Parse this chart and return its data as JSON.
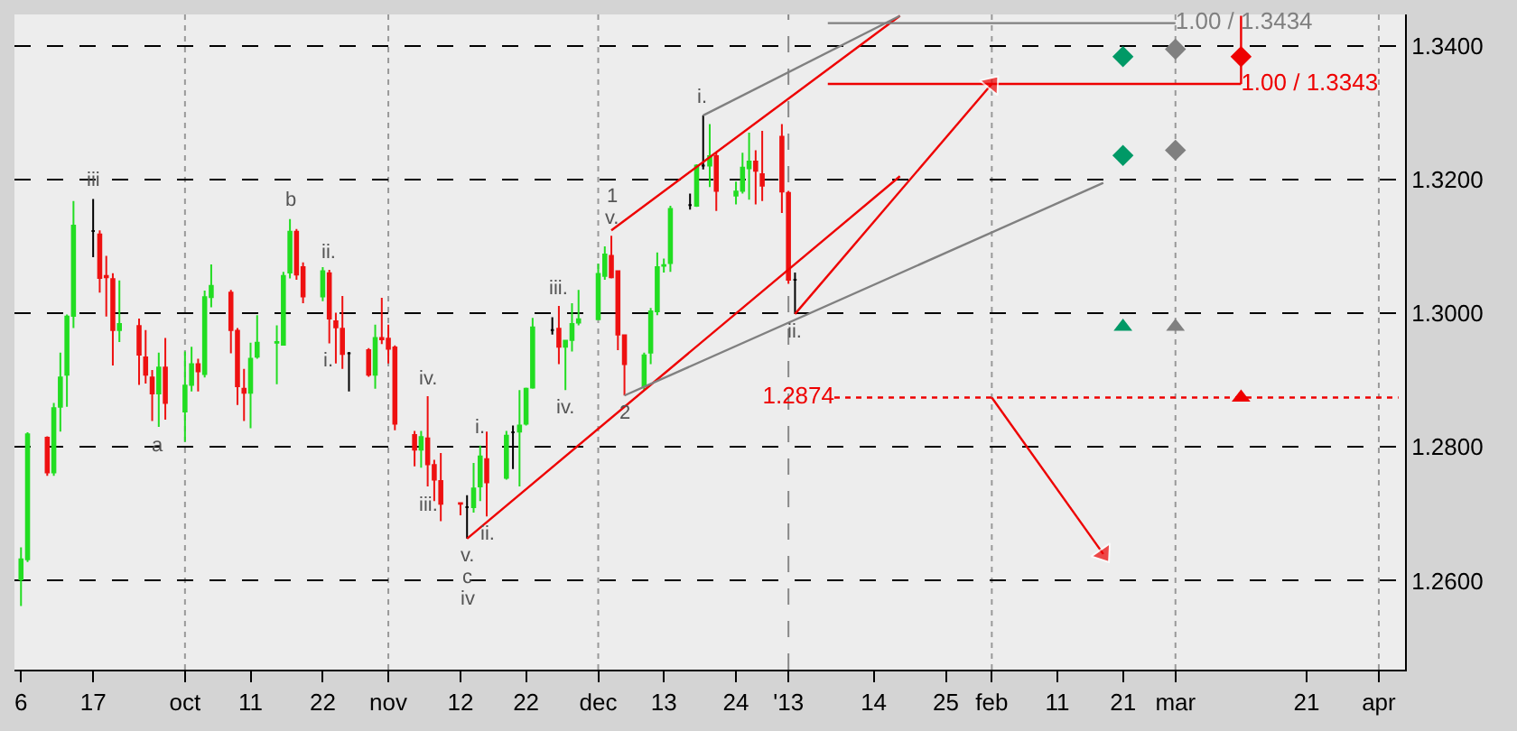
{
  "chart_data": {
    "type": "candlestick",
    "x": [
      "2012-09-06",
      "2012-09-07",
      "2012-09-10",
      "2012-09-11",
      "2012-09-12",
      "2012-09-13",
      "2012-09-14",
      "2012-09-17",
      "2012-09-18",
      "2012-09-19",
      "2012-09-20",
      "2012-09-21",
      "2012-09-24",
      "2012-09-25",
      "2012-09-26",
      "2012-09-27",
      "2012-09-28",
      "2012-10-01",
      "2012-10-02",
      "2012-10-03",
      "2012-10-04",
      "2012-10-05",
      "2012-10-08",
      "2012-10-09",
      "2012-10-10",
      "2012-10-11",
      "2012-10-12",
      "2012-10-15",
      "2012-10-16",
      "2012-10-17",
      "2012-10-18",
      "2012-10-19",
      "2012-10-22",
      "2012-10-23",
      "2012-10-24",
      "2012-10-25",
      "2012-10-26",
      "2012-10-29",
      "2012-10-30",
      "2012-10-31",
      "2012-11-01",
      "2012-11-02",
      "2012-11-05",
      "2012-11-06",
      "2012-11-07",
      "2012-11-08",
      "2012-11-09",
      "2012-11-12",
      "2012-11-13",
      "2012-11-14",
      "2012-11-15",
      "2012-11-16",
      "2012-11-19",
      "2012-11-20",
      "2012-11-21",
      "2012-11-22",
      "2012-11-23",
      "2012-11-26",
      "2012-11-27",
      "2012-11-28",
      "2012-11-29",
      "2012-11-30",
      "2012-12-03",
      "2012-12-04",
      "2012-12-05",
      "2012-12-06",
      "2012-12-07",
      "2012-12-10",
      "2012-12-11",
      "2012-12-12",
      "2012-12-13",
      "2012-12-14",
      "2012-12-17",
      "2012-12-18",
      "2012-12-19",
      "2012-12-20",
      "2012-12-21",
      "2012-12-24",
      "2012-12-25",
      "2012-12-26",
      "2012-12-27",
      "2012-12-28",
      "2012-12-31",
      "2013-01-01",
      "2013-01-02"
    ],
    "ohlc": [
      [
        1.2602,
        1.265,
        1.2562,
        1.2632
      ],
      [
        1.2632,
        1.2822,
        1.2628,
        1.2819
      ],
      [
        1.2814,
        1.2816,
        1.2757,
        1.2762
      ],
      [
        1.2762,
        1.2866,
        1.2757,
        1.2858
      ],
      [
        1.286,
        1.2941,
        1.2823,
        1.2904
      ],
      [
        1.2908,
        1.2998,
        1.286,
        1.2995
      ],
      [
        1.2996,
        1.3168,
        1.2978,
        1.3131
      ],
      [
        1.3123,
        1.3171,
        1.3084,
        1.3123
      ],
      [
        1.3118,
        1.3124,
        1.3031,
        1.3053
      ],
      [
        1.3056,
        1.3086,
        1.2995,
        1.3054
      ],
      [
        1.3051,
        1.306,
        1.2922,
        1.2975
      ],
      [
        1.2975,
        1.3049,
        1.2957,
        1.2984
      ],
      [
        1.2981,
        1.2992,
        1.2893,
        1.2938
      ],
      [
        1.2934,
        1.2975,
        1.2895,
        1.2908
      ],
      [
        1.2904,
        1.2915,
        1.2839,
        1.288
      ],
      [
        1.288,
        1.2941,
        1.283,
        1.2919
      ],
      [
        1.2919,
        1.2963,
        1.2841,
        1.2866
      ],
      [
        1.2853,
        1.2943,
        1.2808,
        1.2892
      ],
      [
        1.2893,
        1.295,
        1.2883,
        1.2924
      ],
      [
        1.2924,
        1.2932,
        1.2883,
        1.2913
      ],
      [
        1.2909,
        1.3034,
        1.2904,
        1.3024
      ],
      [
        1.3024,
        1.3073,
        1.3009,
        1.3041
      ],
      [
        1.3031,
        1.3035,
        1.294,
        1.2975
      ],
      [
        1.2974,
        1.2978,
        1.2863,
        1.2891
      ],
      [
        1.2887,
        1.2917,
        1.2839,
        1.2881
      ],
      [
        1.2881,
        1.2956,
        1.2828,
        1.2932
      ],
      [
        1.2935,
        1.2997,
        1.2932,
        1.2956
      ],
      [
        1.2956,
        1.2982,
        1.2894,
        1.2957
      ],
      [
        1.2953,
        1.3062,
        1.2953,
        1.3056
      ],
      [
        1.3061,
        1.3141,
        1.3052,
        1.3122
      ],
      [
        1.3122,
        1.3126,
        1.305,
        1.3058
      ],
      [
        1.3069,
        1.3076,
        1.3015,
        1.3025
      ],
      [
        1.3025,
        1.3069,
        1.3018,
        1.3063
      ],
      [
        1.306,
        1.3065,
        1.2955,
        1.2992
      ],
      [
        1.2988,
        1.3001,
        1.2925,
        1.2979
      ],
      [
        1.2977,
        1.3026,
        1.2917,
        1.2939
      ],
      [
        1.294,
        1.2942,
        1.2883,
        1.294
      ],
      [
        1.2945,
        1.2948,
        1.2905,
        1.2908
      ],
      [
        1.2908,
        1.2983,
        1.2887,
        1.2963
      ],
      [
        1.2963,
        1.3023,
        1.2954,
        1.2961
      ],
      [
        1.2962,
        1.2983,
        1.2925,
        1.2947
      ],
      [
        1.2949,
        1.2952,
        1.2825,
        1.2835
      ],
      [
        1.2818,
        1.2824,
        1.2771,
        1.2796
      ],
      [
        1.2796,
        1.2824,
        1.2769,
        1.2815
      ],
      [
        1.2813,
        1.2876,
        1.2741,
        1.2774
      ],
      [
        1.2773,
        1.2781,
        1.2719,
        1.2751
      ],
      [
        1.2749,
        1.2791,
        1.2689,
        1.2715
      ],
      [
        1.2716,
        1.2717,
        1.2698,
        1.2715
      ],
      [
        1.271,
        1.2728,
        1.2663,
        1.271
      ],
      [
        1.271,
        1.2776,
        1.2702,
        1.2738
      ],
      [
        1.2741,
        1.2802,
        1.2719,
        1.2786
      ],
      [
        1.2782,
        1.2823,
        1.2696,
        1.2747
      ],
      [
        1.2754,
        1.2824,
        1.2751,
        1.2817
      ],
      [
        1.2822,
        1.2832,
        1.2767,
        1.2822
      ],
      [
        1.2823,
        1.2885,
        1.2741,
        1.2832
      ],
      [
        1.2835,
        1.2889,
        1.2832,
        1.2887
      ],
      [
        1.2889,
        1.2993,
        1.2887,
        1.2979
      ],
      [
        1.2975,
        1.2994,
        1.2968,
        1.2975
      ],
      [
        1.2977,
        1.3011,
        1.2924,
        1.295
      ],
      [
        1.295,
        1.2959,
        1.2885,
        1.2959
      ],
      [
        1.296,
        1.3015,
        1.2943,
        1.2984
      ],
      [
        1.2986,
        1.3035,
        1.2982,
        1.2991
      ],
      [
        1.2991,
        1.3074,
        1.2991,
        1.3059
      ],
      [
        1.3056,
        1.31,
        1.305,
        1.3088
      ],
      [
        1.3086,
        1.3116,
        1.3052,
        1.3054
      ],
      [
        1.3063,
        1.3063,
        1.2945,
        1.2968
      ],
      [
        1.2967,
        1.2967,
        1.2877,
        1.2924
      ],
      [
        1.2891,
        1.2941,
        1.2885,
        1.2937
      ],
      [
        1.2941,
        1.3008,
        1.2924,
        1.3003
      ],
      [
        1.3003,
        1.3091,
        1.2997,
        1.3069
      ],
      [
        1.3071,
        1.3082,
        1.3061,
        1.3072
      ],
      [
        1.3075,
        1.3161,
        1.3062,
        1.3156
      ],
      [
        1.3162,
        1.3179,
        1.3155,
        1.3162
      ],
      [
        1.3161,
        1.3223,
        1.3159,
        1.3221
      ],
      [
        1.3221,
        1.3296,
        1.3215,
        1.3221
      ],
      [
        1.3221,
        1.3283,
        1.3189,
        1.3235
      ],
      [
        1.3235,
        1.324,
        1.3153,
        1.3183
      ],
      [
        1.3176,
        1.3197,
        1.3163,
        1.3182
      ],
      [
        1.3183,
        1.324,
        1.3179,
        1.3218
      ],
      [
        1.3217,
        1.327,
        1.317,
        1.3227
      ],
      [
        1.3227,
        1.3244,
        1.3163,
        1.3213
      ],
      [
        1.3208,
        1.3273,
        1.3168,
        1.3191
      ],
      [
        1.3264,
        1.3283,
        1.315,
        1.3182
      ],
      [
        1.318,
        1.3183,
        1.3044,
        1.305
      ],
      [
        1.305,
        1.3061,
        1.2999,
        1.305
      ]
    ],
    "colors": [
      "#22dd22",
      "#22dd22",
      "#ee1111",
      "#22dd22",
      "#22dd22",
      "#22dd22",
      "#22dd22",
      "#000000",
      "#ee1111",
      "#ee1111",
      "#ee1111",
      "#22dd22",
      "#ee1111",
      "#ee1111",
      "#ee1111",
      "#22dd22",
      "#ee1111",
      "#22dd22",
      "#22dd22",
      "#ee1111",
      "#22dd22",
      "#22dd22",
      "#ee1111",
      "#ee1111",
      "#ee1111",
      "#22dd22",
      "#22dd22",
      "#22dd22",
      "#22dd22",
      "#22dd22",
      "#ee1111",
      "#ee1111",
      "#22dd22",
      "#ee1111",
      "#ee1111",
      "#ee1111",
      "#000000",
      "#ee1111",
      "#22dd22",
      "#ee1111",
      "#ee1111",
      "#ee1111",
      "#ee1111",
      "#22dd22",
      "#ee1111",
      "#ee1111",
      "#ee1111",
      "#ee1111",
      "#000000",
      "#22dd22",
      "#22dd22",
      "#ee1111",
      "#22dd22",
      "#000000",
      "#22dd22",
      "#22dd22",
      "#22dd22",
      "#000000",
      "#ee1111",
      "#22dd22",
      "#22dd22",
      "#22dd22",
      "#22dd22",
      "#22dd22",
      "#ee1111",
      "#ee1111",
      "#ee1111",
      "#22dd22",
      "#22dd22",
      "#22dd22",
      "#22dd22",
      "#22dd22",
      "#000000",
      "#22dd22",
      "#000000",
      "#22dd22",
      "#ee1111",
      "#22dd22",
      "#22dd22",
      "#22dd22",
      "#ee1111",
      "#ee1111",
      "#ee1111",
      "#ee1111",
      "#000000"
    ],
    "xlim": [
      "2012-09-05",
      "2013-04-05"
    ],
    "xticks": [
      {
        "value": "2012-09-06",
        "label": "6"
      },
      {
        "value": "2012-09-17",
        "label": "17"
      },
      {
        "value": "2012-10-01",
        "label": "oct"
      },
      {
        "value": "2012-10-11",
        "label": "11"
      },
      {
        "value": "2012-10-22",
        "label": "22"
      },
      {
        "value": "2012-11-01",
        "label": "nov"
      },
      {
        "value": "2012-11-12",
        "label": "12"
      },
      {
        "value": "2012-11-22",
        "label": "22"
      },
      {
        "value": "2012-12-03",
        "label": "dec"
      },
      {
        "value": "2012-12-13",
        "label": "13"
      },
      {
        "value": "2012-12-24",
        "label": "24"
      },
      {
        "value": "2013-01-01",
        "label": "'13"
      },
      {
        "value": "2013-01-14",
        "label": "14"
      },
      {
        "value": "2013-01-25",
        "label": "25"
      },
      {
        "value": "2013-02-01",
        "label": "feb"
      },
      {
        "value": "2013-02-11",
        "label": "11"
      },
      {
        "value": "2013-02-21",
        "label": "21"
      },
      {
        "value": "2013-03-01",
        "label": "mar"
      },
      {
        "value": "2013-03-21",
        "label": "21"
      },
      {
        "value": "2013-04-01",
        "label": "apr"
      }
    ],
    "ylim": [
      1.2467,
      1.3447
    ],
    "yticks": [
      {
        "value": 1.26,
        "label": "1.2600"
      },
      {
        "value": 1.28,
        "label": "1.2800"
      },
      {
        "value": 1.3,
        "label": "1.3000"
      },
      {
        "value": 1.32,
        "label": "1.3200"
      },
      {
        "value": 1.34,
        "label": "1.3400"
      }
    ],
    "grid": "y",
    "ref_lines": [
      {
        "axis": "x",
        "value": "2012-10-01",
        "color": "#999999",
        "line_style": "dotted"
      },
      {
        "axis": "x",
        "value": "2012-11-01",
        "color": "#999999",
        "line_style": "dotted"
      },
      {
        "axis": "x",
        "value": "2012-12-03",
        "color": "#999999",
        "line_style": "dotted"
      },
      {
        "axis": "x",
        "value": "2013-01-01",
        "color": "#888888",
        "line_style": "dashed"
      },
      {
        "axis": "x",
        "value": "2013-02-01",
        "color": "#999999",
        "line_style": "dotted"
      },
      {
        "axis": "x",
        "value": "2013-03-01",
        "color": "#999999",
        "line_style": "dotted"
      },
      {
        "axis": "x",
        "value": "2013-04-01",
        "color": "#999999",
        "line_style": "dotted"
      }
    ],
    "series": [
      {
        "type": "line",
        "color": "#ee0000",
        "x": [
          "2012-11-13",
          "2013-01-18"
        ],
        "values": [
          1.2663,
          1.3205
        ]
      },
      {
        "type": "line",
        "color": "#ee0000",
        "x": [
          "2012-12-05",
          "2013-01-18"
        ],
        "values": [
          1.3124,
          1.3445
        ]
      },
      {
        "type": "line",
        "color": "#808080",
        "x": [
          "2012-12-07",
          "2013-02-18"
        ],
        "values": [
          1.2877,
          1.3195
        ]
      },
      {
        "type": "line",
        "color": "#808080",
        "x": [
          "2012-12-19",
          "2013-01-18"
        ],
        "values": [
          1.3296,
          1.3445
        ]
      },
      {
        "type": "line",
        "color": "#808080",
        "x": [
          "2013-01-07",
          "2013-03-01"
        ],
        "values": [
          1.3434,
          1.3434
        ],
        "value_labels": [
          null,
          "1.00 / 1.3434"
        ]
      },
      {
        "type": "line",
        "color": "#ee0000",
        "x": [
          "2013-01-07",
          "2013-03-11"
        ],
        "values": [
          1.3343,
          1.3343
        ],
        "value_labels": [
          null,
          "1.00 / 1.3343"
        ]
      },
      {
        "type": "line",
        "color": "#ee0000",
        "x": [
          "2013-03-11",
          "2013-03-11"
        ],
        "values": [
          1.3445,
          1.3343
        ]
      },
      {
        "type": "line",
        "color": "#ee0000",
        "line_style": "dotted",
        "x": [
          "2013-01-08",
          "2013-04-04"
        ],
        "values": [
          1.2874,
          1.2874
        ],
        "value_labels": [
          "1.2874",
          null
        ]
      },
      {
        "type": "line",
        "color": "#ee0000",
        "marker": "triangle",
        "x": [
          "2013-01-02",
          "2013-02-01"
        ],
        "values": [
          1.2999,
          1.3343
        ]
      },
      {
        "type": "line",
        "color": "#ee0000",
        "marker": "triangle",
        "x": [
          "2013-02-01",
          "2013-02-18"
        ],
        "values": [
          1.2874,
          1.264
        ]
      },
      {
        "type": "scatter",
        "marker": "diamond",
        "color": "#009966",
        "x": [
          "2013-02-21",
          "2013-02-21"
        ],
        "values": [
          1.3384,
          1.3236
        ]
      },
      {
        "type": "scatter",
        "marker": "diamond",
        "color": "#808080",
        "x": [
          "2013-03-01",
          "2013-03-01"
        ],
        "values": [
          1.3395,
          1.3244
        ]
      },
      {
        "type": "scatter",
        "marker": "diamond",
        "color": "#ee0000",
        "x": [
          "2013-03-11"
        ],
        "values": [
          1.3384
        ]
      },
      {
        "type": "scatter",
        "marker": "triangle",
        "colors": [
          "#009966",
          "#808080",
          "#ee0000"
        ],
        "x": [
          "2013-02-21",
          "2013-03-01",
          "2013-03-11"
        ],
        "values": [
          1.298,
          1.298,
          1.2874
        ]
      }
    ],
    "annotations": [
      {
        "text": "iii",
        "x": "2012-09-17",
        "y": 1.3171
      },
      {
        "text": "a",
        "x": "2012-09-27",
        "y": 1.283
      },
      {
        "text": "b",
        "x": "2012-10-17",
        "y": 1.3141
      },
      {
        "text": "ii.",
        "x": "2012-10-23",
        "y": 1.3065
      },
      {
        "text": "i.",
        "x": "2012-10-23",
        "y": 1.2955
      },
      {
        "text": "iv.",
        "x": "2012-11-07",
        "y": 1.2876
      },
      {
        "text": "iii.",
        "x": "2012-11-07",
        "y": 1.2741
      },
      {
        "text": "v.",
        "x": "2012-11-13",
        "y": 1.2663
      },
      {
        "text": "c",
        "x": "2012-11-13",
        "y": 1.2663
      },
      {
        "text": "iv",
        "x": "2012-11-13",
        "y": 1.2663
      },
      {
        "text": "i.",
        "x": "2012-11-15",
        "y": 1.2802
      },
      {
        "text": "ii.",
        "x": "2012-11-16",
        "y": 1.2696
      },
      {
        "text": "iii.",
        "x": "2012-11-27",
        "y": 1.3011
      },
      {
        "text": "iv.",
        "x": "2012-11-28",
        "y": 1.2885
      },
      {
        "text": "v.",
        "x": "2012-12-05",
        "y": 1.3116
      },
      {
        "text": "1",
        "x": "2012-12-05",
        "y": 1.3116
      },
      {
        "text": "2",
        "x": "2012-12-07",
        "y": 1.2877
      },
      {
        "text": "i.",
        "x": "2012-12-19",
        "y": 1.3296
      },
      {
        "text": "ii.",
        "x": "2013-01-02",
        "y": 1.2999
      }
    ]
  }
}
